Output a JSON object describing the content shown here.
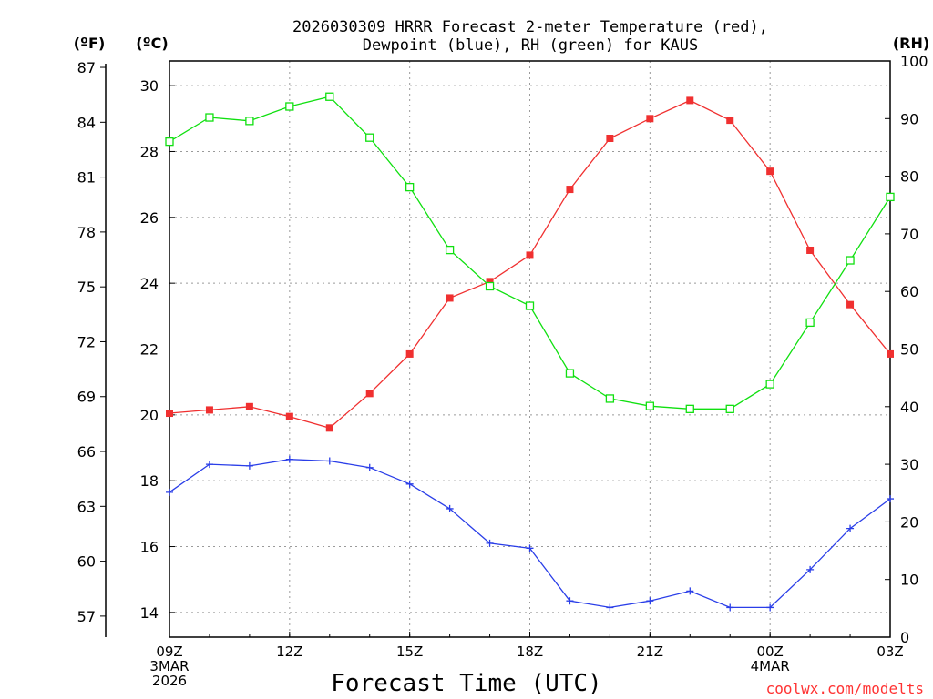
{
  "chart_data": {
    "type": "line",
    "title_line1": "2026030309 HRRR Forecast 2-meter Temperature (red),",
    "title_line2": "Dewpoint (blue), RH (green) for KAUS",
    "xlabel": "Forecast Time (UTC)",
    "left_outer_unit": "(ºF)",
    "left_inner_unit": "(ºC)",
    "right_unit": "(RH)",
    "credit": "coolwx.com/modelts",
    "x_hours": [
      0,
      1,
      2,
      3,
      4,
      5,
      6,
      7,
      8,
      9,
      10,
      11,
      12,
      13,
      14,
      15,
      16,
      17,
      18
    ],
    "x_ticks": [
      {
        "hour": 0,
        "lines": [
          "09Z",
          "3MAR",
          "2026"
        ]
      },
      {
        "hour": 3,
        "lines": [
          "12Z"
        ]
      },
      {
        "hour": 6,
        "lines": [
          "15Z"
        ]
      },
      {
        "hour": 9,
        "lines": [
          "18Z"
        ]
      },
      {
        "hour": 12,
        "lines": [
          "21Z"
        ]
      },
      {
        "hour": 15,
        "lines": [
          "00Z",
          "4MAR"
        ]
      },
      {
        "hour": 18,
        "lines": [
          "03Z"
        ]
      }
    ],
    "celsius_axis": {
      "min": 13.25,
      "max": 30.75,
      "ticks": [
        "14",
        "16",
        "18",
        "20",
        "22",
        "24",
        "26",
        "28",
        "30"
      ]
    },
    "fahrenheit_axis": {
      "ticks": [
        "57",
        "60",
        "63",
        "66",
        "69",
        "72",
        "75",
        "78",
        "81",
        "84",
        "87"
      ]
    },
    "rh_axis": {
      "min": 0,
      "max": 100,
      "ticks": [
        "0",
        "10",
        "20",
        "30",
        "40",
        "50",
        "60",
        "70",
        "80",
        "90",
        "100"
      ]
    },
    "series": [
      {
        "name": "Temperature",
        "unit": "C",
        "color": "#ff0000",
        "values": [
          20.05,
          20.15,
          20.25,
          19.95,
          19.6,
          20.65,
          21.85,
          23.55,
          24.05,
          24.85,
          26.85,
          28.4,
          29.0,
          29.55,
          28.95,
          27.4,
          25.0,
          23.35,
          21.85
        ]
      },
      {
        "name": "Dewpoint",
        "unit": "C",
        "color": "#0000ff",
        "values": [
          17.65,
          18.5,
          18.45,
          18.65,
          18.6,
          18.4,
          17.9,
          17.15,
          16.1,
          15.95,
          14.35,
          14.15,
          14.35,
          14.65,
          14.15,
          14.15,
          15.3,
          16.55,
          17.45
        ]
      },
      {
        "name": "RH",
        "unit": "%",
        "color": "#00ff00",
        "values": [
          86.0,
          90.2,
          89.6,
          92.1,
          93.8,
          86.7,
          78.1,
          67.2,
          60.9,
          57.5,
          45.8,
          41.4,
          40.1,
          39.6,
          39.6,
          43.9,
          54.6,
          65.4,
          76.4
        ]
      }
    ]
  }
}
